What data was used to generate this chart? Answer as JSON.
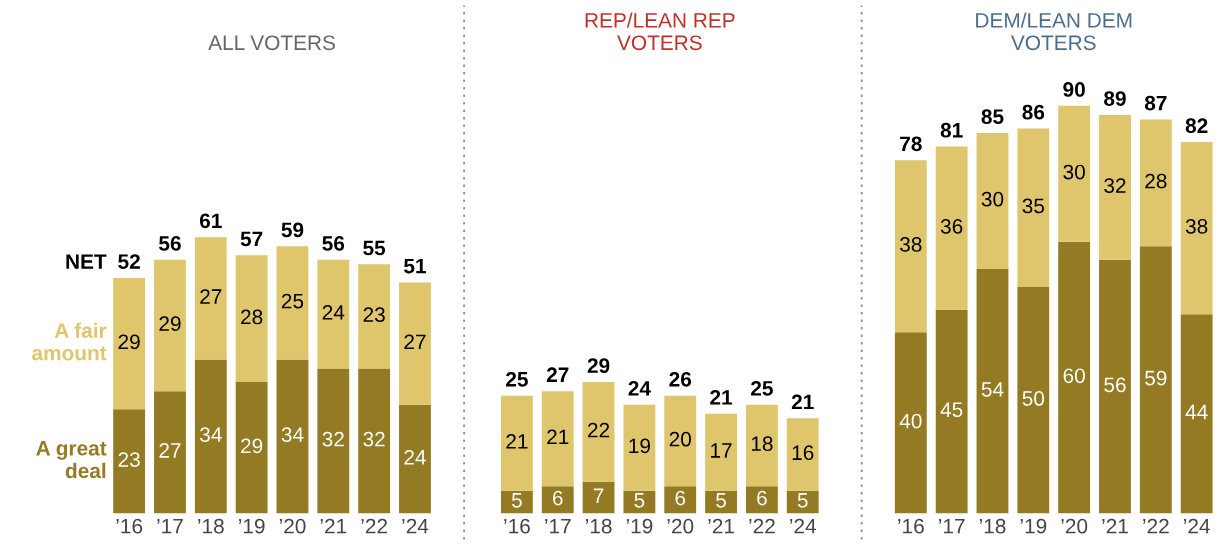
{
  "chart_data": [
    {
      "type": "bar",
      "title": "ALL VOTERS",
      "stacked": true,
      "data_labels": true,
      "tick_labels": "x",
      "grid": false,
      "legend": false,
      "annotations": [
        "NET"
      ],
      "categories": [
        "’16",
        "’17",
        "’18",
        "’19",
        "’20",
        "’21",
        "’22",
        "’24"
      ],
      "series": [
        {
          "name": "A great deal",
          "color": "#947a23",
          "values": [
            23,
            27,
            34,
            29,
            34,
            32,
            32,
            24
          ]
        },
        {
          "name": "A fair amount",
          "color": "#dfc66d",
          "values": [
            29,
            29,
            27,
            28,
            25,
            24,
            23,
            27
          ]
        }
      ],
      "totals": [
        "52",
        "56",
        "61",
        "57",
        "59",
        "56",
        "55",
        "51"
      ]
    },
    {
      "type": "bar",
      "title": "REP/LEAN REP\nVOTERS",
      "stacked": true,
      "data_labels": true,
      "tick_labels": "x",
      "grid": false,
      "legend": false,
      "categories": [
        "’16",
        "’17",
        "’18",
        "’19",
        "’20",
        "’21",
        "’22",
        "’24"
      ],
      "series": [
        {
          "color": "#947a23",
          "values": [
            5,
            6,
            7,
            5,
            6,
            5,
            6,
            5
          ]
        },
        {
          "color": "#dfc66d",
          "values": [
            21,
            21,
            22,
            19,
            20,
            17,
            18,
            16
          ]
        }
      ],
      "totals": [
        "25",
        "27",
        "29",
        "24",
        "26",
        "21",
        "25",
        "21"
      ]
    },
    {
      "type": "bar",
      "title": "DEM/LEAN DEM\nVOTERS",
      "stacked": true,
      "data_labels": true,
      "tick_labels": "x",
      "grid": false,
      "legend": false,
      "categories": [
        "’16",
        "’17",
        "’18",
        "’19",
        "’20",
        "’21",
        "’22",
        "’24"
      ],
      "series": [
        {
          "color": "#947a23",
          "values": [
            40,
            45,
            54,
            50,
            60,
            56,
            59,
            44
          ]
        },
        {
          "color": "#dfc66d",
          "values": [
            38,
            36,
            30,
            35,
            30,
            32,
            28,
            38
          ]
        }
      ],
      "totals": [
        "78",
        "81",
        "85",
        "86",
        "90",
        "89",
        "87",
        "82"
      ]
    }
  ]
}
